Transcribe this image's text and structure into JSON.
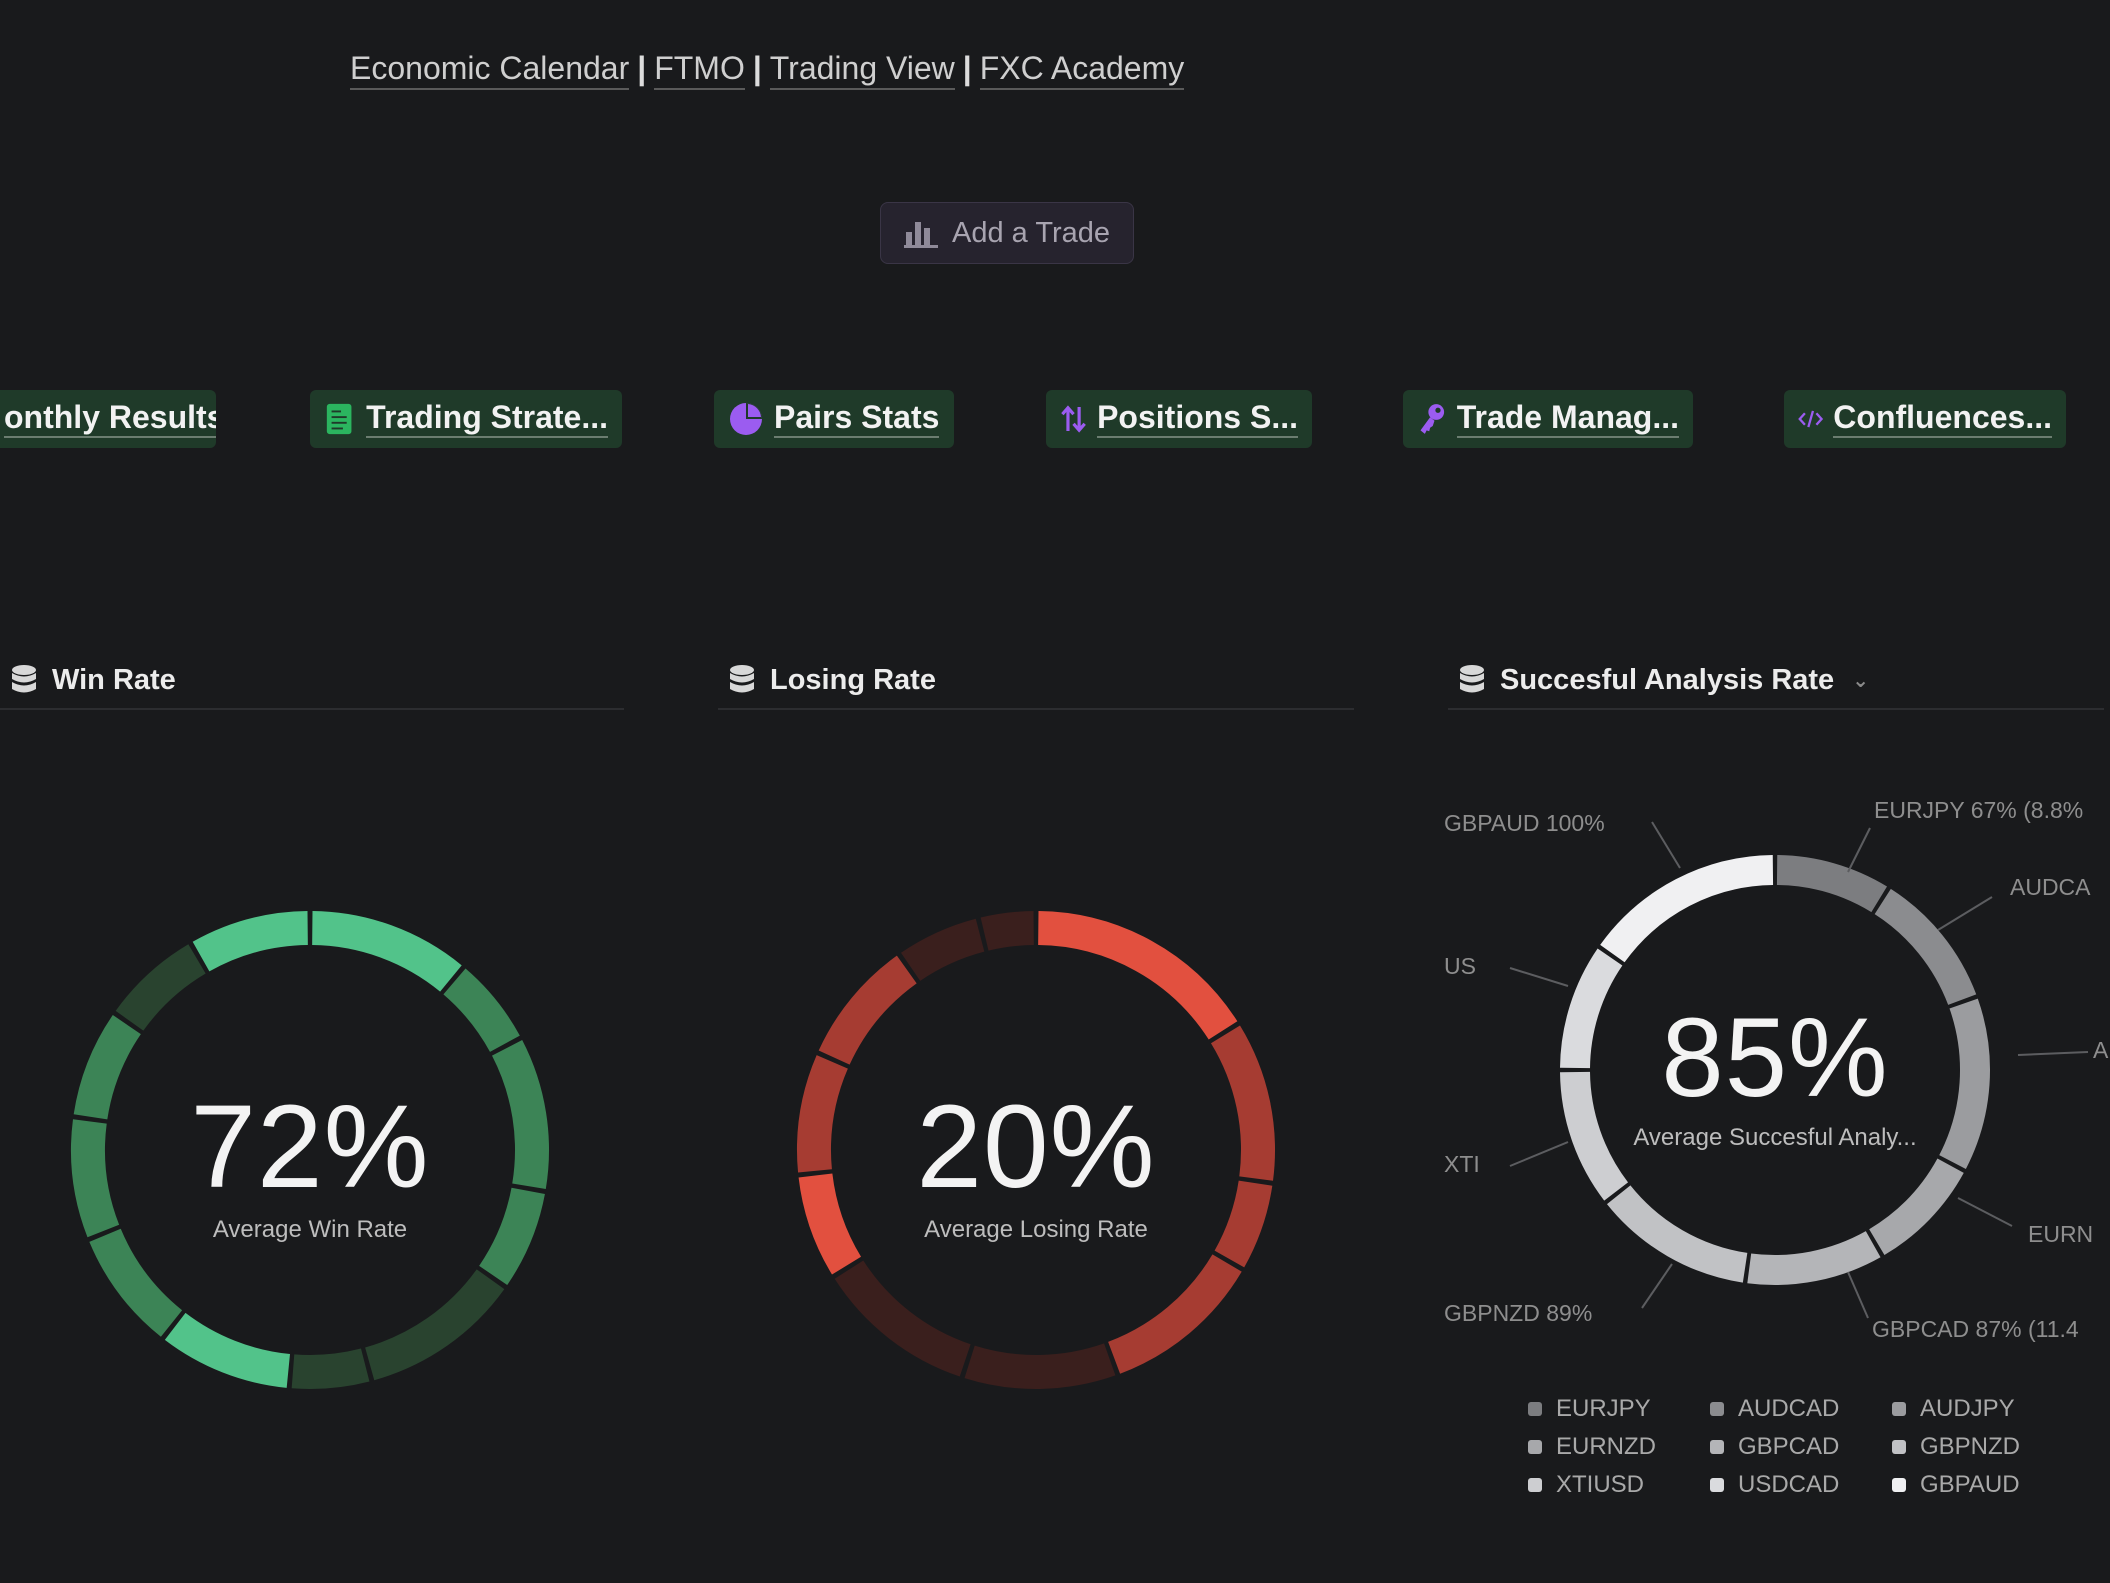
{
  "topnav": {
    "links": [
      "Economic Calendar",
      "FTMO",
      "Trading View",
      "FXC Academy"
    ],
    "separator": "|"
  },
  "add_trade": {
    "label": "Add a Trade",
    "icon": "bar-chart-icon"
  },
  "pills": [
    {
      "label": "onthly Results",
      "icon": ""
    },
    {
      "label": "Trading Strate...",
      "icon": "sheet-icon"
    },
    {
      "label": "Pairs Stats",
      "icon": "pie-chart-icon"
    },
    {
      "label": "Positions S...",
      "icon": "up-down-arrows-icon"
    },
    {
      "label": "Trade Manag...",
      "icon": "key-icon"
    },
    {
      "label": "Confluences...",
      "icon": "code-icon"
    }
  ],
  "sections": {
    "win": {
      "title": "Win Rate",
      "icon": "database-icon"
    },
    "lose": {
      "title": "Losing Rate",
      "icon": "database-icon"
    },
    "analysis": {
      "title": "Succesful Analysis Rate",
      "icon": "database-icon"
    }
  },
  "chart_data": [
    {
      "type": "pie",
      "value_label": "72%",
      "subtitle": "Average Win Rate",
      "value": 72
    },
    {
      "type": "pie",
      "value_label": "20%",
      "subtitle": "Average Losing Rate",
      "value": 20
    },
    {
      "type": "pie",
      "value_label": "85%",
      "subtitle": "Average Succesful Analy...",
      "value": 85,
      "slice_labels": [
        "GBPAUD 100%",
        "EURJPY 67% (8.8%",
        "AUDCA",
        "A",
        "EURN",
        "GBPCAD 87% (11.4",
        "GBPNZD 89%",
        "XTI",
        "US"
      ],
      "legend": [
        "EURJPY",
        "AUDCAD",
        "AUDJPY",
        "EURNZD",
        "GBPCAD",
        "GBPNZD",
        "XTIUSD",
        "USDCAD",
        "GBPAUD"
      ],
      "legend_colors": [
        "#7c7d80",
        "#8b8c8f",
        "#9b9c9f",
        "#a7a8ab",
        "#b4b5b8",
        "#c1c2c5",
        "#cdced1",
        "#dadbde",
        "#f0f0f2"
      ]
    }
  ],
  "colors": {
    "green_bright": "#52c38a",
    "green_mid": "#3c8456",
    "green_dark": "#29432f",
    "red_bright": "#e2503f",
    "red_mid": "#a63c32",
    "red_dark": "#3a1f1d"
  }
}
